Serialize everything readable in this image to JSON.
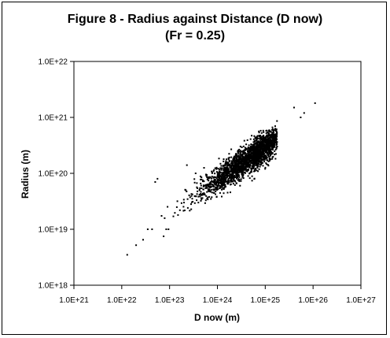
{
  "chart_data": {
    "type": "scatter",
    "title_line1": "Figure 8 - Radius against Distance (D now)",
    "title_line2": "(Fr = 0.25)",
    "xlabel": "D now (m)",
    "ylabel": "Radius (m)",
    "x_scale": "log",
    "y_scale": "log",
    "xlim": [
      1e+21,
      1e+27
    ],
    "ylim": [
      1e+18,
      1e+22
    ],
    "x_tick_values": [
      1e+21,
      1e+22,
      1e+23,
      1e+24,
      1e+25,
      1e+26,
      1e+27
    ],
    "x_tick_labels": [
      "1.0E+21",
      "1.0E+22",
      "1.0E+23",
      "1.0E+24",
      "1.0E+25",
      "1.0E+26",
      "1.0E+27"
    ],
    "y_tick_values": [
      1e+18,
      1e+19,
      1e+20,
      1e+21,
      1e+22
    ],
    "y_tick_labels": [
      "1.0E+18",
      "1.0E+19",
      "1.0E+20",
      "1.0E+21",
      "1.0E+22"
    ],
    "grid": false,
    "marker_color": "#000000",
    "points": [
      [
        1.3e+22,
        3.5e+18
      ],
      [
        2e+22,
        5.2e+18
      ],
      [
        2.8e+22,
        6.5e+18
      ],
      [
        3.5e+22,
        1e+19
      ],
      [
        4.3e+22,
        1e+19
      ],
      [
        5e+22,
        7e+19
      ],
      [
        5.6e+22,
        8e+19
      ],
      [
        7.5e+22,
        7.5e+18
      ],
      [
        8.5e+22,
        1e+19
      ],
      [
        9.5e+22,
        1e+19
      ],
      [
        1.2e+23,
        1.7e+19
      ],
      [
        1.5e+23,
        1.8e+19
      ],
      [
        2e+23,
        3e+19
      ],
      [
        2.3e+23,
        1.4e+20
      ],
      [
        3e+23,
        4.2e+19
      ],
      [
        3.5e+23,
        1e+20
      ],
      [
        4e+23,
        3e+19
      ],
      [
        5e+23,
        7.5e+19
      ],
      [
        7e+23,
        8.5e+19
      ],
      [
        4e+25,
        1.5e+21
      ],
      [
        5.5e+25,
        1e+21
      ],
      [
        6.5e+25,
        1.2e+21
      ],
      [
        1.1e+26,
        1.8e+21
      ]
    ],
    "cloud": {
      "n": 2400,
      "center_log_x": 24.75,
      "center_log_y": 20.32,
      "spread_major": 0.32,
      "spread_minor": 0.13,
      "slope": 0.6,
      "seed": 8
    }
  }
}
